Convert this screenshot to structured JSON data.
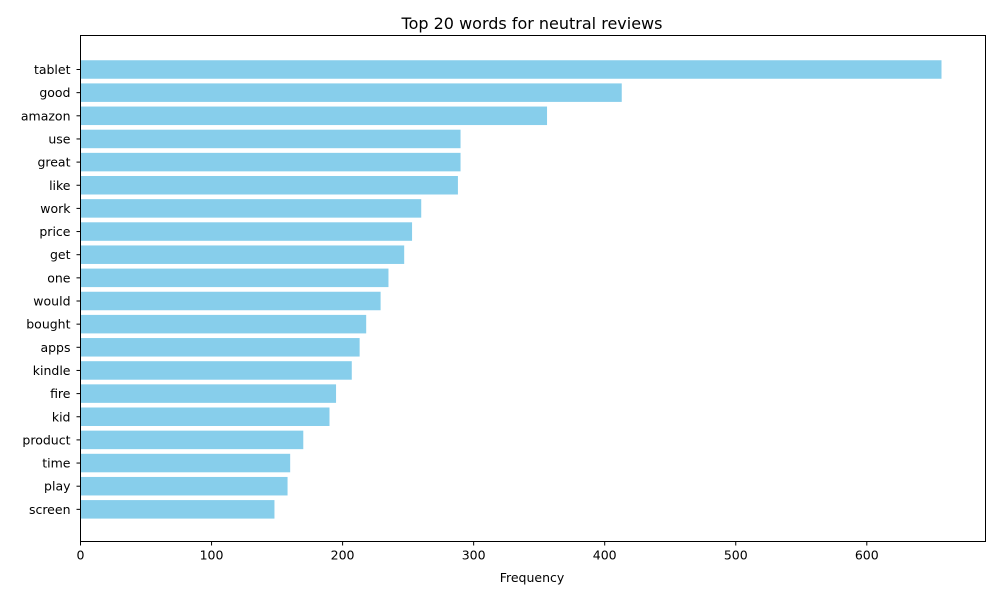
{
  "chart_data": {
    "type": "bar",
    "orientation": "horizontal",
    "title": "Top 20 words for neutral reviews",
    "xlabel": "Frequency",
    "ylabel": "",
    "categories": [
      "tablet",
      "good",
      "amazon",
      "use",
      "great",
      "like",
      "work",
      "price",
      "get",
      "one",
      "would",
      "bought",
      "apps",
      "kindle",
      "fire",
      "kid",
      "product",
      "time",
      "play",
      "screen"
    ],
    "values": [
      657,
      413,
      356,
      290,
      290,
      288,
      260,
      253,
      247,
      235,
      229,
      218,
      213,
      207,
      195,
      190,
      170,
      160,
      158,
      148
    ],
    "xlim": [
      0,
      690
    ],
    "xticks": [
      0,
      100,
      200,
      300,
      400,
      500,
      600
    ],
    "grid": false,
    "bar_color": "#87ceeb"
  }
}
